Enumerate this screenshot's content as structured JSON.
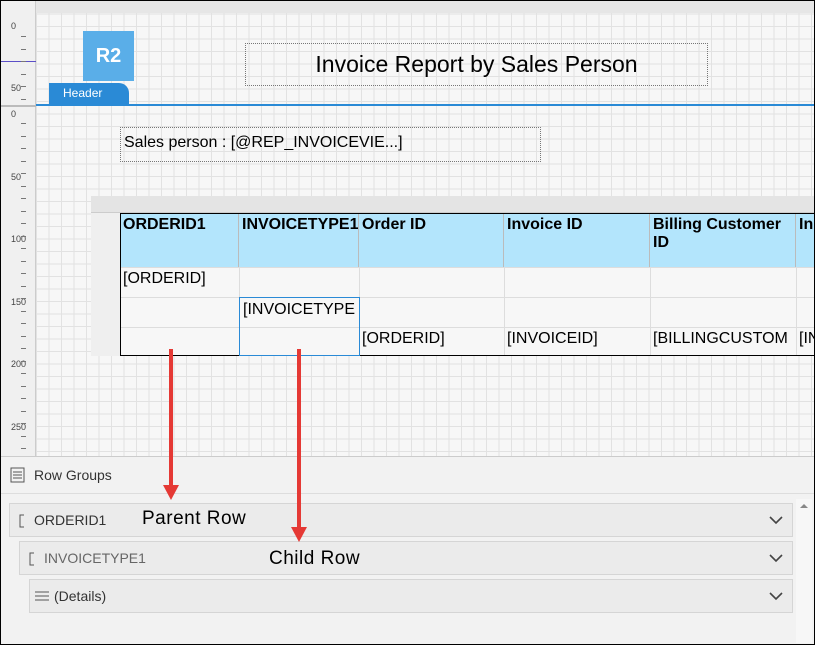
{
  "ruler": {
    "top": [
      "0",
      "50"
    ],
    "body": [
      "0",
      "50",
      "100",
      "150",
      "200",
      "250"
    ]
  },
  "header": {
    "badge": "R2",
    "tab": "Header",
    "title": "Invoice Report by Sales Person"
  },
  "parameter": "Sales person : [@REP_INVOICEVIE...]",
  "table": {
    "columns": [
      "ORDERID1",
      "INVOICETYPE1",
      "Order ID",
      "Invoice ID",
      "Billing Customer ID",
      "In"
    ],
    "cells": [
      "[ORDERID]",
      "[INVOICETYPE",
      "[ORDERID]",
      "[INVOICEID]",
      "[BILLINGCUSTOM",
      "[IN"
    ]
  },
  "row_groups": {
    "title": "Row Groups",
    "items": [
      "ORDERID1",
      "INVOICETYPE1",
      "(Details)"
    ]
  },
  "annotations": [
    "Parent Row",
    "Child Row"
  ]
}
